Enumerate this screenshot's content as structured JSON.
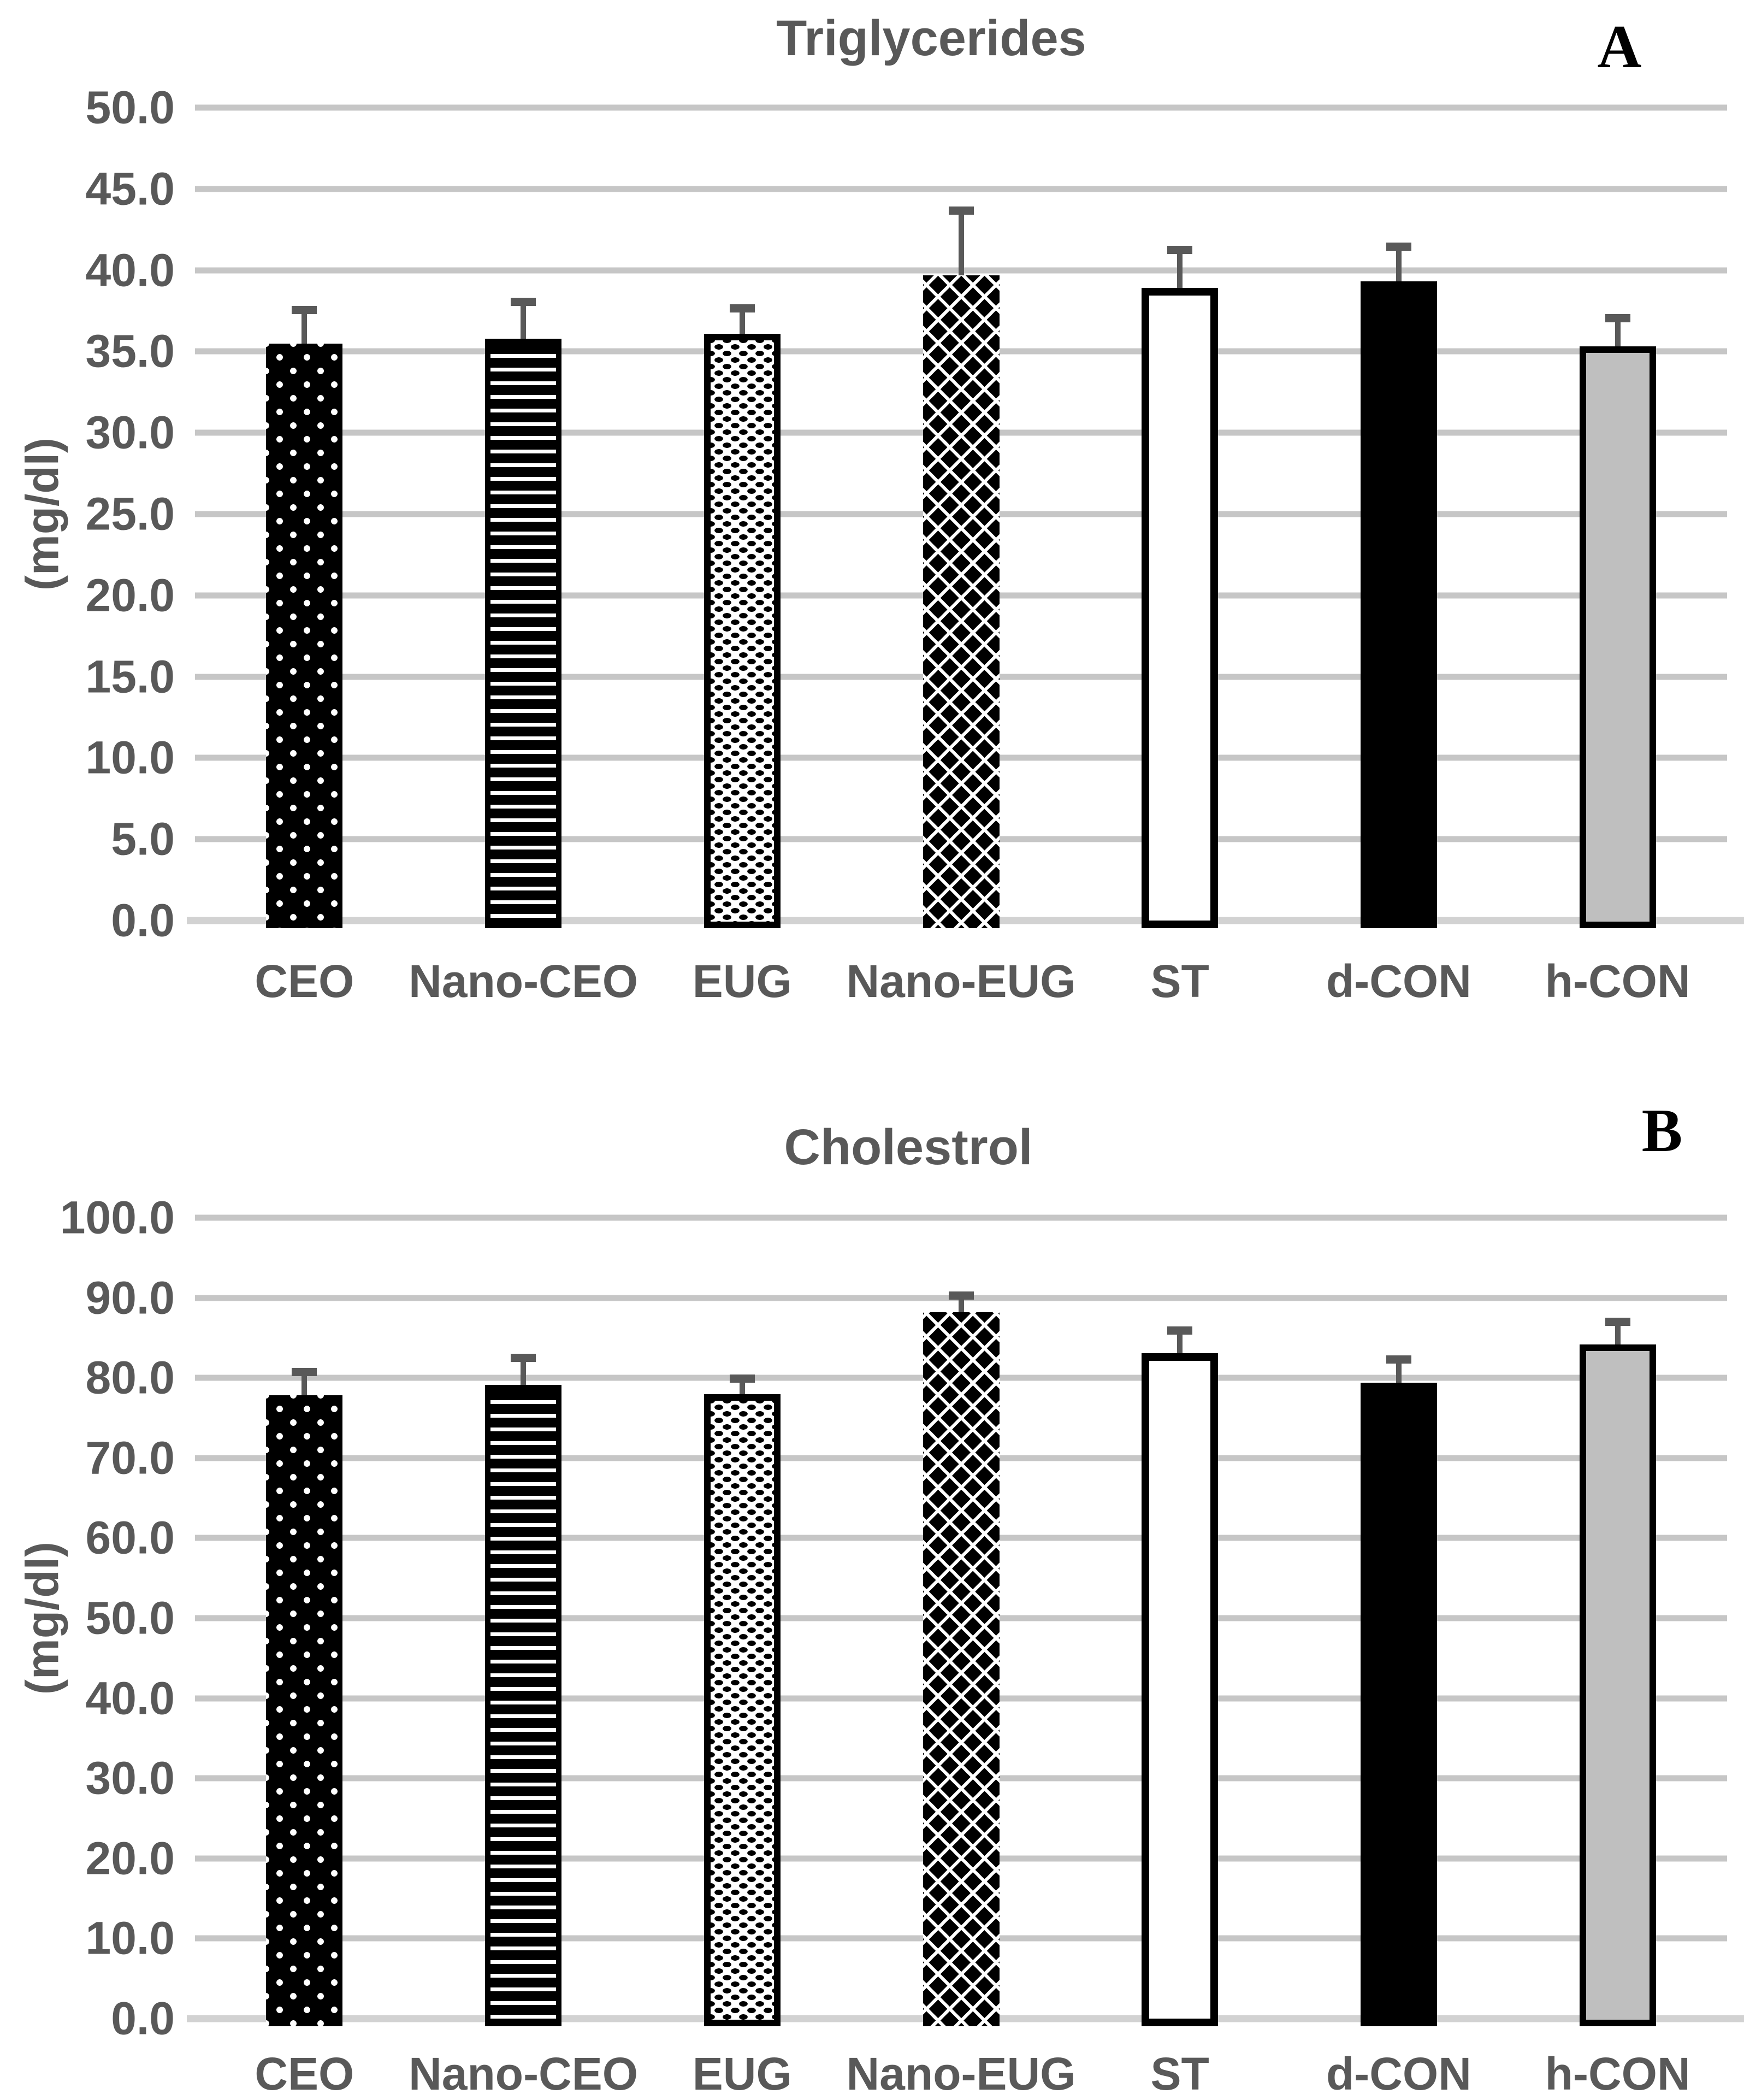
{
  "figure": {
    "background": "#ffffff",
    "text_color": "#595959",
    "gridline_color": "#c6c6c6",
    "error_bar_color": "#595959",
    "bar_gray_fill": "#bfbfbf",
    "bar_black_fill": "#000000",
    "bar_white_fill": "#ffffff"
  },
  "chart_data": [
    {
      "type": "bar",
      "title": "Triglycerides",
      "corner_label": "A",
      "ylabel": "(mg/dl)",
      "xlabel": "",
      "ylim": [
        0,
        50
      ],
      "ytick_step": 5,
      "yticks": [
        "50.0",
        "45.0",
        "40.0",
        "35.0",
        "30.0",
        "25.0",
        "20.0",
        "15.0",
        "10.0",
        "5.0",
        "0.0"
      ],
      "grid": true,
      "legend": "none",
      "categories": [
        "CEO",
        "Nano-CEO",
        "EUG",
        "Nano-EUG",
        "ST",
        "d-CON",
        "h-CON"
      ],
      "values": [
        35.5,
        35.8,
        36.1,
        39.7,
        38.9,
        39.3,
        35.3
      ],
      "errors_plus": [
        1.8,
        2.0,
        1.3,
        3.7,
        2.1,
        1.9,
        1.5
      ],
      "bar_patterns": [
        "white-dots-on-black",
        "horizontal-stripes",
        "black-dots-on-white",
        "diamond-lattice",
        "white",
        "solid-black",
        "gray"
      ]
    },
    {
      "type": "bar",
      "title": "Cholestrol",
      "corner_label": "B",
      "ylabel": "(mg/dl)",
      "xlabel": "",
      "ylim": [
        0,
        100
      ],
      "ytick_step": 10,
      "yticks": [
        "100.0",
        "90.0",
        "80.0",
        "70.0",
        "60.0",
        "50.0",
        "40.0",
        "30.0",
        "20.0",
        "10.0",
        "0.0"
      ],
      "grid": true,
      "legend": "none",
      "categories": [
        "CEO",
        "Nano-CEO",
        "EUG",
        "Nano-EUG",
        "ST",
        "d-CON",
        "h-CON"
      ],
      "values": [
        77.8,
        79.1,
        78.0,
        88.2,
        83.1,
        79.4,
        84.2
      ],
      "errors_plus": [
        2.4,
        2.9,
        1.4,
        1.6,
        2.3,
        2.4,
        2.3
      ],
      "bar_patterns": [
        "white-dots-on-black",
        "horizontal-stripes",
        "black-dots-on-white",
        "diamond-lattice",
        "white",
        "solid-black",
        "gray"
      ]
    }
  ]
}
